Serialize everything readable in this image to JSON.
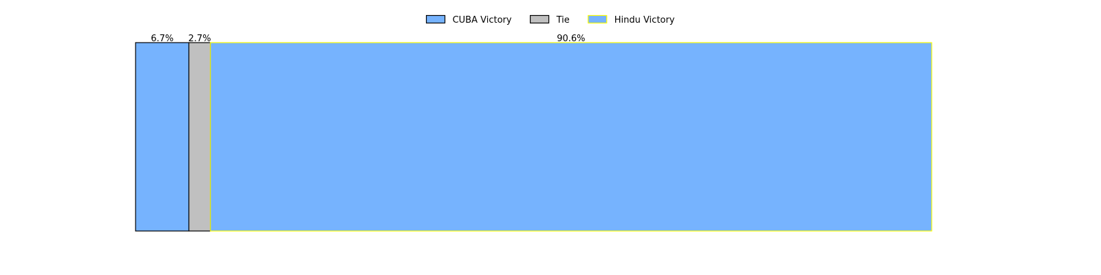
{
  "chart_data": {
    "type": "bar",
    "orientation": "horizontal-stacked",
    "series": [
      {
        "name": "CUBA Victory",
        "value": 6.7,
        "label": "6.7%",
        "fill": "#76b3fe",
        "edge": "#000000"
      },
      {
        "name": "Tie",
        "value": 2.7,
        "label": "2.7%",
        "fill": "#c0c0c0",
        "edge": "#000000"
      },
      {
        "name": "Hindu Victory",
        "value": 90.6,
        "label": "90.6%",
        "fill": "#76b3fe",
        "edge": "#ffff00"
      }
    ],
    "xlim": [
      0,
      100
    ],
    "axes_visible": false,
    "grid": false,
    "legend_position": "top-center"
  }
}
